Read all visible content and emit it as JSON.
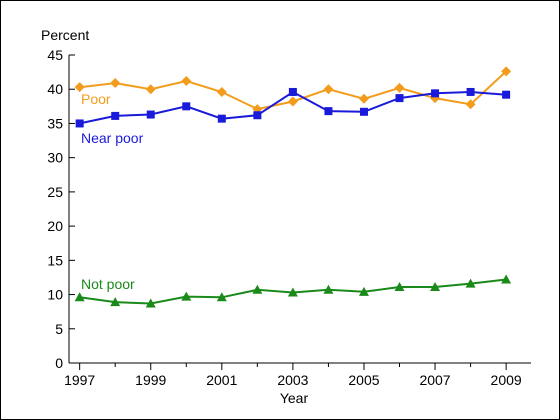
{
  "chart_data": {
    "type": "line",
    "title": "",
    "ylabel": "Percent",
    "xlabel": "Year",
    "xlim": [
      1996.7,
      2009.7
    ],
    "ylim": [
      0,
      45
    ],
    "x_ticks": [
      1997,
      1999,
      2001,
      2003,
      2005,
      2007,
      2009
    ],
    "y_ticks": [
      0,
      5,
      10,
      15,
      20,
      25,
      30,
      35,
      40,
      45
    ],
    "grid": false,
    "x": [
      1997,
      1998,
      1999,
      2000,
      2001,
      2002,
      2003,
      2004,
      2005,
      2006,
      2007,
      2008,
      2009
    ],
    "series": [
      {
        "name": "Poor",
        "color": "#f39c1c",
        "marker": "diamond",
        "values": [
          40.3,
          40.9,
          40.0,
          41.2,
          39.6,
          37.1,
          38.2,
          40.0,
          38.6,
          40.2,
          38.7,
          37.8,
          42.6
        ]
      },
      {
        "name": "Near poor",
        "color": "#1a1adb",
        "marker": "square",
        "values": [
          35.0,
          36.1,
          36.3,
          37.5,
          35.7,
          36.2,
          39.6,
          36.8,
          36.7,
          38.7,
          39.4,
          39.6,
          39.2
        ]
      },
      {
        "name": "Not poor",
        "color": "#1a8a1a",
        "marker": "triangle",
        "values": [
          9.6,
          8.9,
          8.7,
          9.7,
          9.6,
          10.7,
          10.3,
          10.7,
          10.4,
          11.1,
          11.1,
          11.6,
          12.2
        ]
      }
    ]
  }
}
